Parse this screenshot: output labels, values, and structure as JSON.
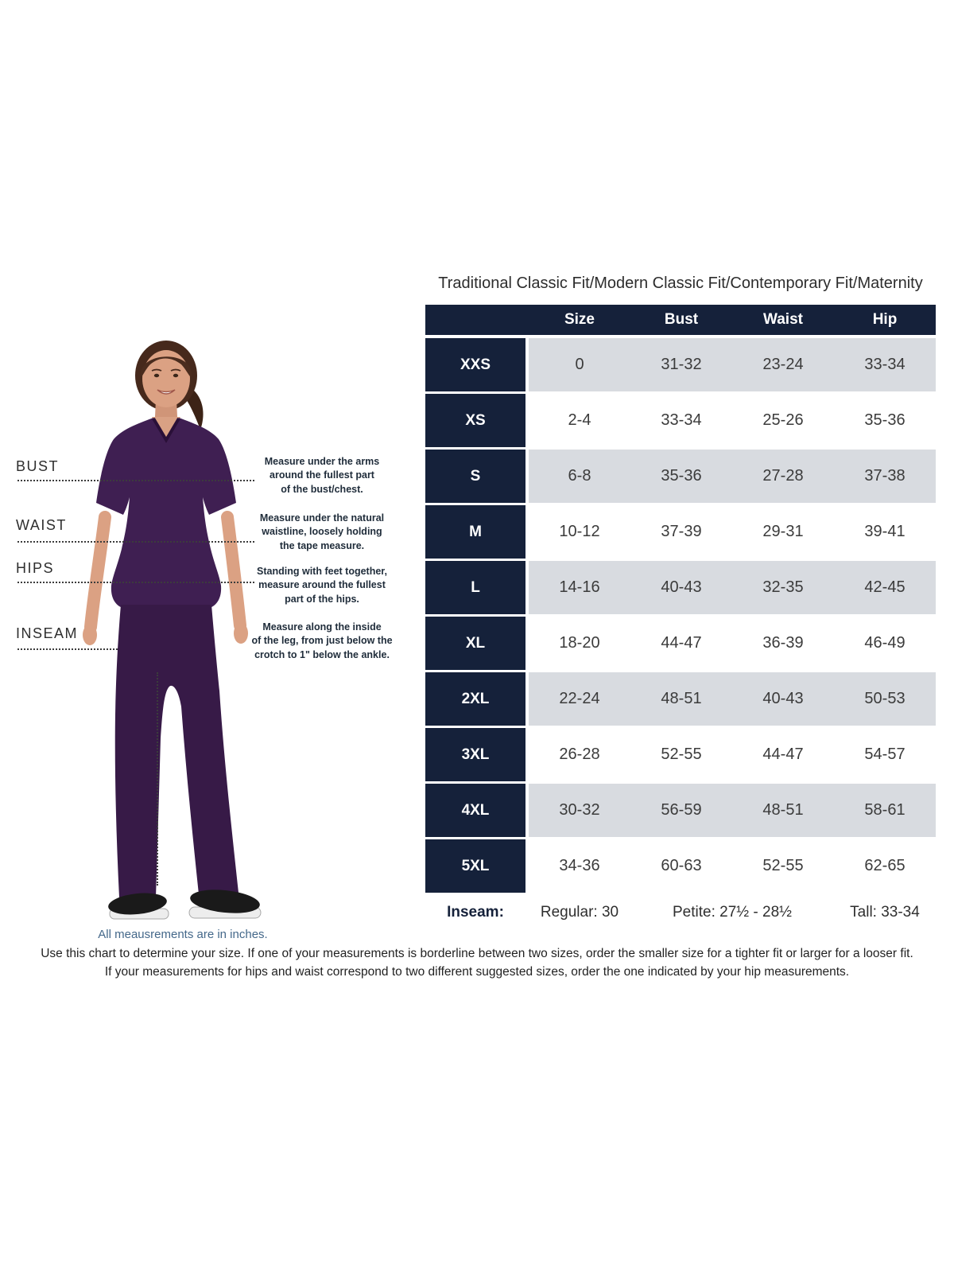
{
  "title": "Traditional Classic Fit/Modern Classic Fit/Contemporary Fit/Maternity",
  "diagram": {
    "points": [
      {
        "label": "BUST",
        "instruction": "Measure under the arms\naround the fullest part\nof the bust/chest."
      },
      {
        "label": "WAIST",
        "instruction": "Measure under the natural\nwaistline, loosely holding\nthe tape measure."
      },
      {
        "label": "HIPS",
        "instruction": "Standing with feet together,\nmeasure around the fullest\npart of the hips."
      },
      {
        "label": "INSEAM",
        "instruction": "Measure along the inside\nof the leg, from just below the\ncrotch to 1\" below the ankle."
      }
    ],
    "caption": "All meausrements are in inches."
  },
  "table": {
    "headers": [
      "Size",
      "Bust",
      "Waist",
      "Hip"
    ],
    "rows": [
      {
        "size": "XXS",
        "values": [
          "0",
          "31-32",
          "23-24",
          "33-34"
        ]
      },
      {
        "size": "XS",
        "values": [
          "2-4",
          "33-34",
          "25-26",
          "35-36"
        ]
      },
      {
        "size": "S",
        "values": [
          "6-8",
          "35-36",
          "27-28",
          "37-38"
        ]
      },
      {
        "size": "M",
        "values": [
          "10-12",
          "37-39",
          "29-31",
          "39-41"
        ]
      },
      {
        "size": "L",
        "values": [
          "14-16",
          "40-43",
          "32-35",
          "42-45"
        ]
      },
      {
        "size": "XL",
        "values": [
          "18-20",
          "44-47",
          "36-39",
          "46-49"
        ]
      },
      {
        "size": "2XL",
        "values": [
          "22-24",
          "48-51",
          "40-43",
          "50-53"
        ]
      },
      {
        "size": "3XL",
        "values": [
          "26-28",
          "52-55",
          "44-47",
          "54-57"
        ]
      },
      {
        "size": "4XL",
        "values": [
          "30-32",
          "56-59",
          "48-51",
          "58-61"
        ]
      },
      {
        "size": "5XL",
        "values": [
          "34-36",
          "60-63",
          "52-55",
          "62-65"
        ]
      }
    ],
    "inseam_row": {
      "label": "Inseam:",
      "regular": "Regular: 30",
      "petite": "Petite: 27½ - 28½",
      "tall": "Tall: 33-34"
    }
  },
  "footer": {
    "line1": "Use this chart to determine your size. If one of your measurements is borderline between two sizes, order the smaller size for a tighter fit or larger for a looser fit.",
    "line2": "If your measurements for hips and waist correspond to two different suggested sizes, order the one indicated by your hip measurements."
  },
  "colors": {
    "navy": "#15213a",
    "row_gray": "#d8dbe0",
    "caption_blue": "#44688a",
    "scrub_purple": "#3f1f52"
  }
}
